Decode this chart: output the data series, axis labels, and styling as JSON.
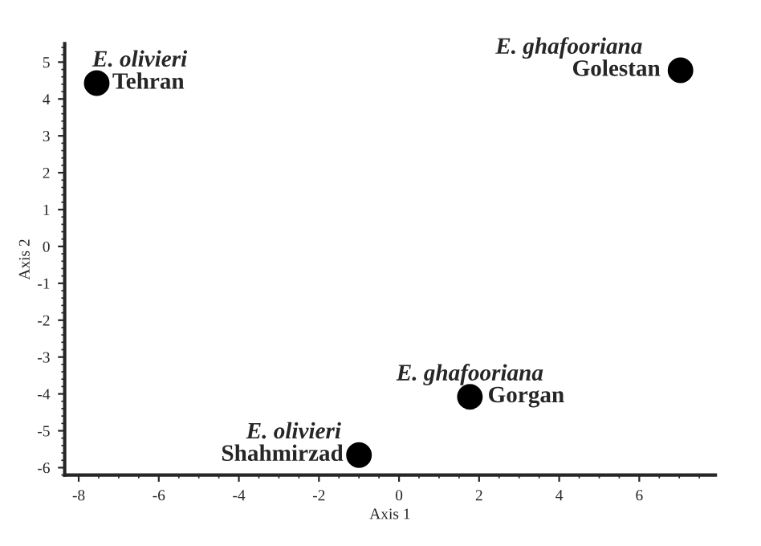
{
  "chart_data": {
    "type": "scatter",
    "xlabel": "Axis 1",
    "ylabel": "Axis 2",
    "x": [
      -7.55,
      7.03,
      1.77,
      -1.0
    ],
    "series": [
      {
        "color": "#000000",
        "values": [
          4.43,
          4.78,
          -4.08,
          -5.66
        ]
      }
    ],
    "marker": "circle",
    "xlim": [
      -8.35,
      7.9
    ],
    "xticks": [
      -8,
      -6,
      -4,
      -2,
      0,
      2,
      4,
      6
    ],
    "ylim": [
      -6.2,
      5.5
    ],
    "yticks": [
      -6,
      -5,
      -4,
      -3,
      -2,
      -1,
      0,
      1,
      2,
      3,
      4,
      5
    ],
    "grid": false,
    "annotations": [
      {
        "text": "E. olivieri",
        "x": -7.55,
        "y": 4.43
      },
      {
        "text": "Tehran",
        "x": -7.55,
        "y": 4.43
      },
      {
        "text": "E. ghafooriana",
        "x": 7.03,
        "y": 4.78
      },
      {
        "text": "Golestan",
        "x": 7.03,
        "y": 4.78
      },
      {
        "text": "E. ghafooriana",
        "x": 1.77,
        "y": -4.08
      },
      {
        "text": "Gorgan",
        "x": 1.77,
        "y": -4.08
      },
      {
        "text": "E. olivieri",
        "x": -1.0,
        "y": -5.66
      },
      {
        "text": "Shahmirzad",
        "x": -1.0,
        "y": -5.66
      }
    ]
  }
}
